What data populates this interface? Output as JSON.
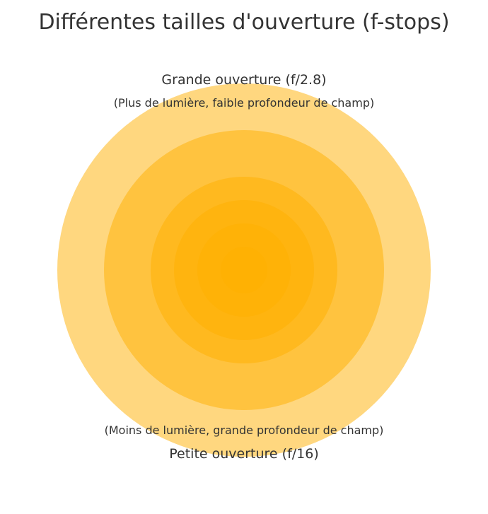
{
  "title": "Différentes tailles d'ouverture (f-stops)",
  "top_label": {
    "main": "Grande ouverture (f/2.8)",
    "sub": "(Plus de lumière, faible profondeur de champ)"
  },
  "bottom_label": {
    "sub": "(Moins de lumière, grande profondeur de champ)",
    "main": "Petite ouverture (f/16)"
  },
  "colors": {
    "circle_fill": "#FFB000",
    "text": "#333333",
    "background": "#FFFFFF"
  },
  "apertures": [
    {
      "relative_size": 1.0,
      "opacity": 0.5
    },
    {
      "relative_size": 0.75,
      "opacity": 0.5
    },
    {
      "relative_size": 0.5,
      "opacity": 0.5
    },
    {
      "relative_size": 0.375,
      "opacity": 0.5
    },
    {
      "relative_size": 0.25,
      "opacity": 0.5
    },
    {
      "relative_size": 0.125,
      "opacity": 0.5
    }
  ]
}
